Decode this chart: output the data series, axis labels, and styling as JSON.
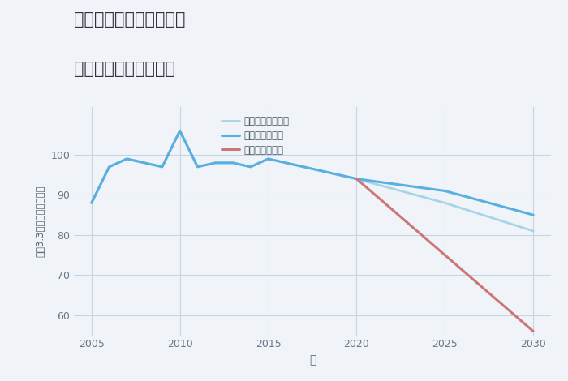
{
  "title_line1": "愛知県東海市富木島町の",
  "title_line2": "中古戸建ての価格推移",
  "xlabel": "年",
  "ylabel": "坪（3.3㎡）単価（万円）",
  "background_color": "#f0f4f8",
  "plot_bg_color": "#f0f4f8",
  "grid_color": "#c5d5e5",
  "xlim": [
    2004,
    2031
  ],
  "ylim": [
    55,
    112
  ],
  "yticks": [
    60,
    70,
    80,
    90,
    100
  ],
  "xticks": [
    2005,
    2010,
    2015,
    2020,
    2025,
    2030
  ],
  "series": {
    "good": {
      "label": "グッドシナリオ",
      "color": "#5aafe0",
      "linewidth": 2.2,
      "x": [
        2005,
        2006,
        2007,
        2008,
        2009,
        2010,
        2011,
        2012,
        2013,
        2014,
        2015,
        2016,
        2017,
        2018,
        2019,
        2020,
        2025,
        2030
      ],
      "y": [
        88,
        97,
        99,
        98,
        97,
        106,
        97,
        98,
        98,
        97,
        99,
        98,
        97,
        96,
        95,
        94,
        91,
        85
      ]
    },
    "bad": {
      "label": "バッドシナリオ",
      "color": "#cc7777",
      "linewidth": 2.2,
      "x": [
        2020,
        2030
      ],
      "y": [
        94,
        56
      ]
    },
    "normal": {
      "label": "ノーマルシナリオ",
      "color": "#a8d4ea",
      "linewidth": 2.0,
      "x": [
        2005,
        2006,
        2007,
        2008,
        2009,
        2010,
        2011,
        2012,
        2013,
        2014,
        2015,
        2016,
        2017,
        2018,
        2019,
        2020,
        2025,
        2030
      ],
      "y": [
        88,
        97,
        99,
        98,
        97,
        106,
        97,
        98,
        98,
        97,
        99,
        98,
        97,
        96,
        95,
        94,
        88,
        81
      ]
    }
  }
}
